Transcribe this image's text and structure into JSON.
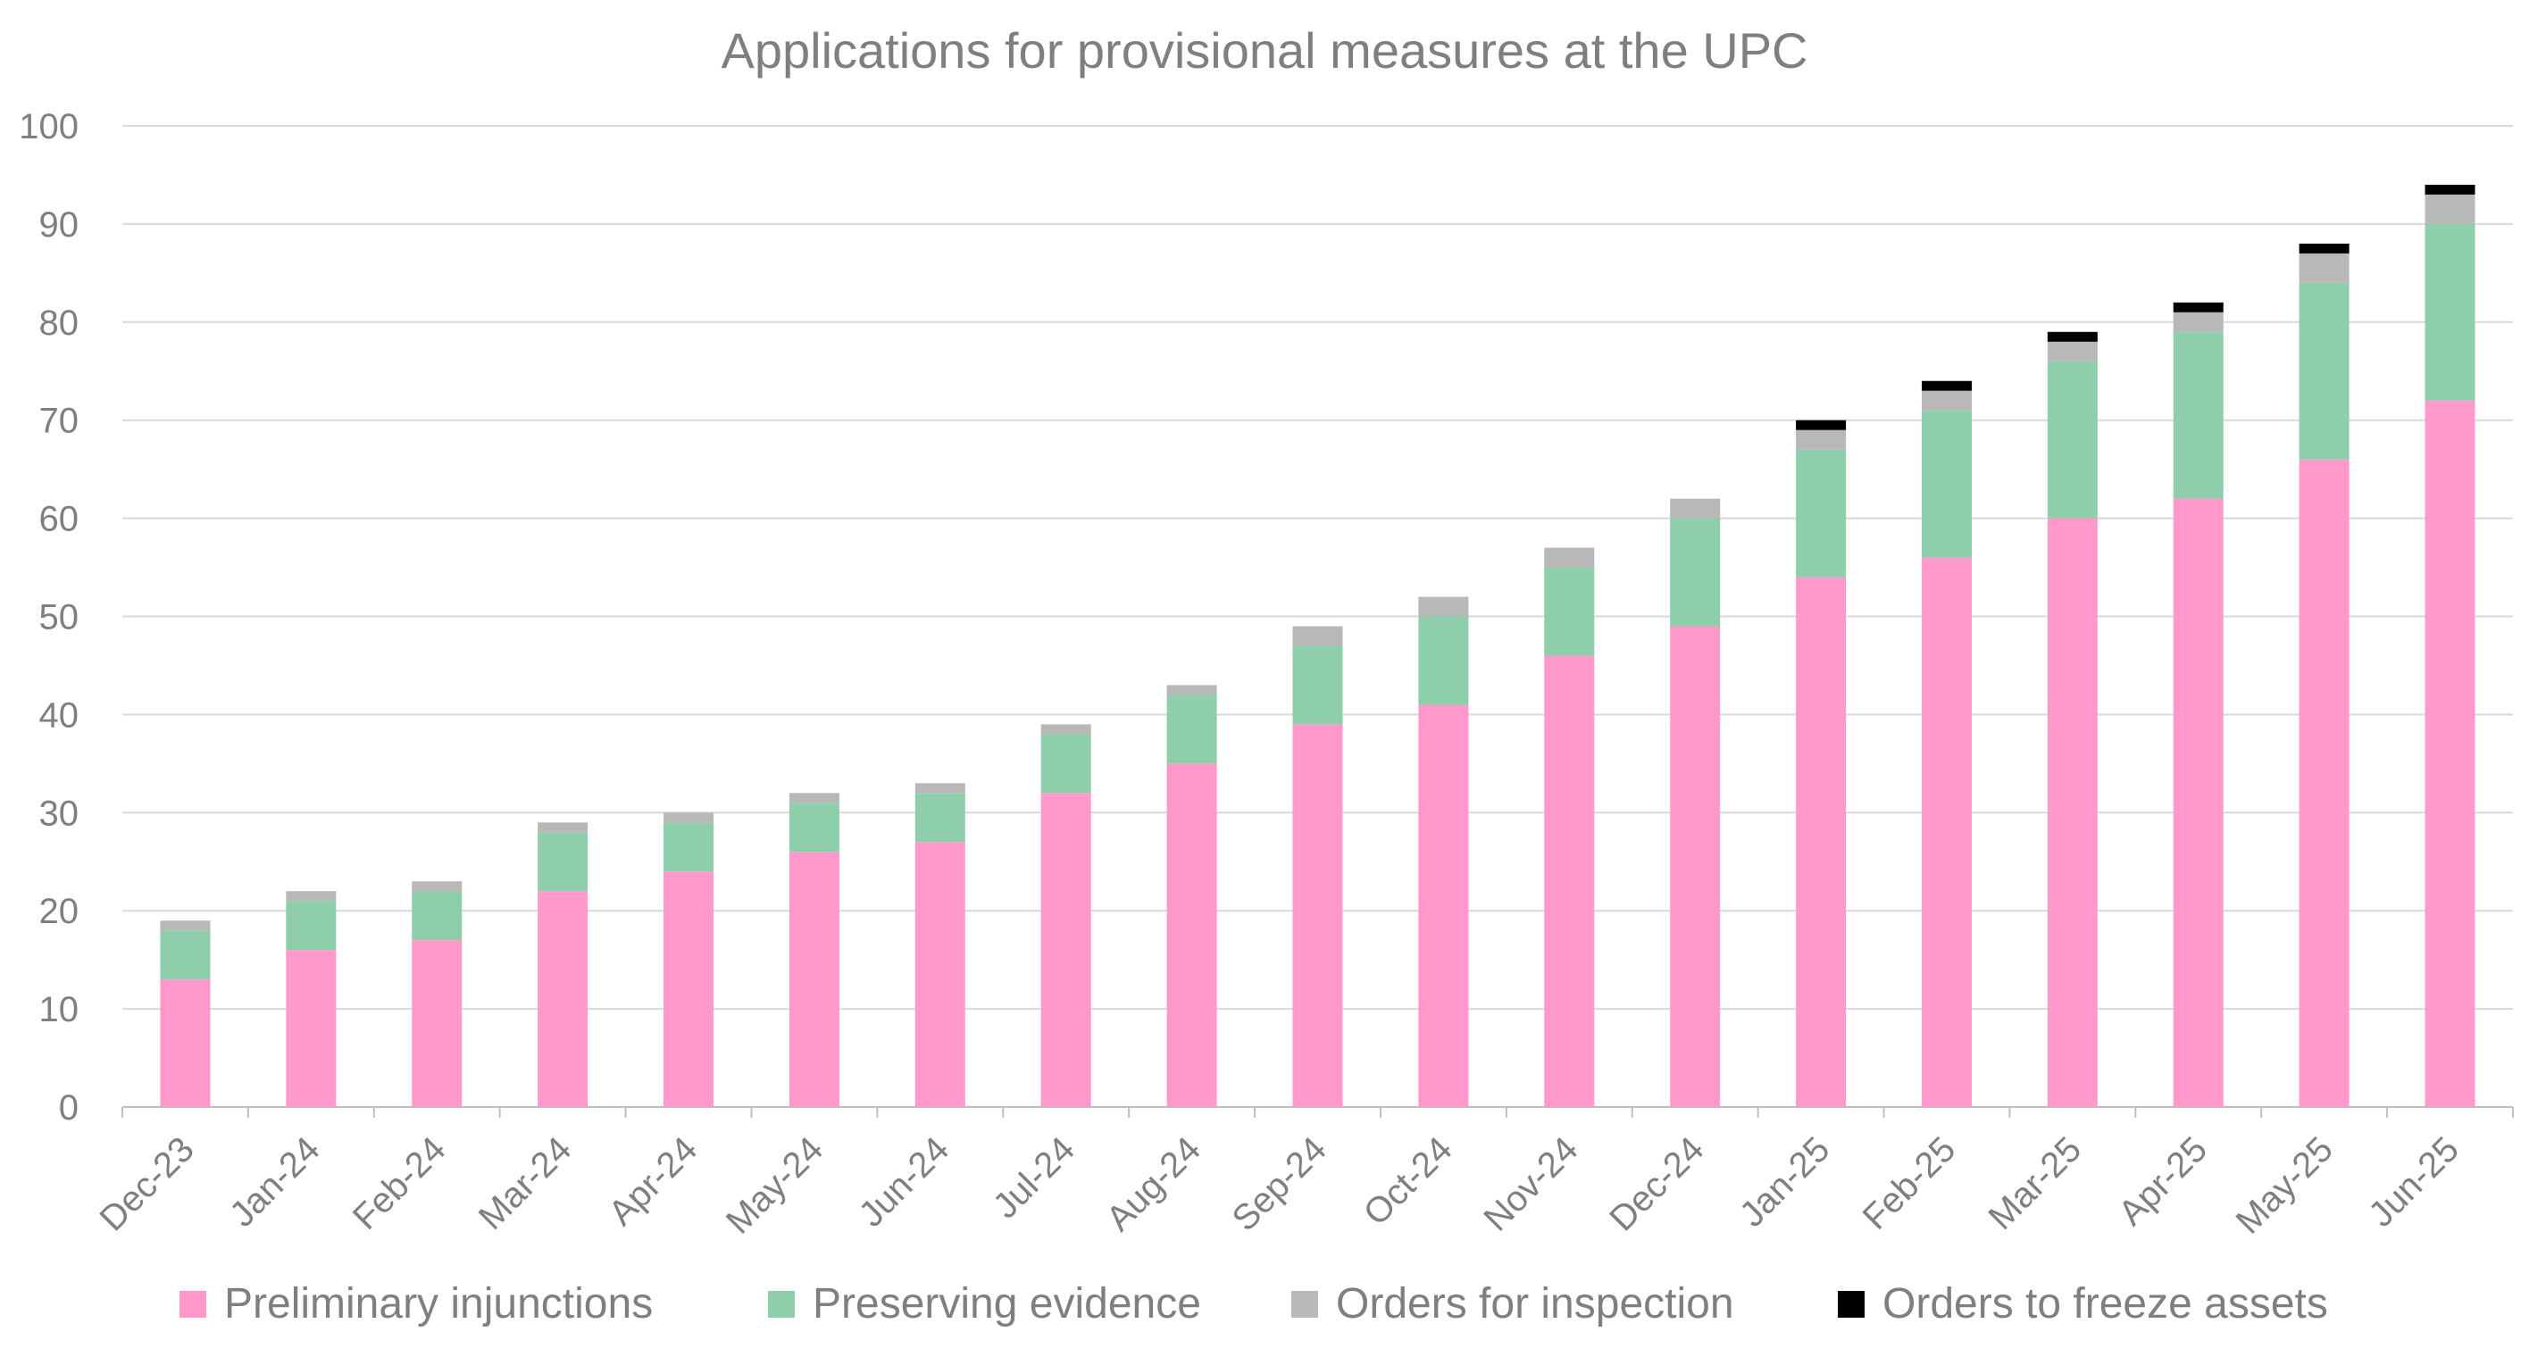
{
  "chart_data": {
    "type": "bar",
    "stacked": true,
    "title": "Applications for provisional measures at the UPC",
    "xlabel": "",
    "ylabel": "",
    "ylim": [
      0,
      100
    ],
    "yticks": [
      0,
      10,
      20,
      30,
      40,
      50,
      60,
      70,
      80,
      90,
      100
    ],
    "grid": true,
    "legend_position": "bottom",
    "categories": [
      "Dec-23",
      "Jan-24",
      "Feb-24",
      "Mar-24",
      "Apr-24",
      "May-24",
      "Jun-24",
      "Jul-24",
      "Aug-24",
      "Sep-24",
      "Oct-24",
      "Nov-24",
      "Dec-24",
      "Jan-25",
      "Feb-25",
      "Mar-25",
      "Apr-25",
      "May-25",
      "Jun-25"
    ],
    "series": [
      {
        "name": "Preliminary injunctions",
        "color": "#ff99cc",
        "values": [
          13,
          16,
          17,
          22,
          24,
          26,
          27,
          32,
          35,
          39,
          41,
          46,
          49,
          54,
          56,
          60,
          62,
          66,
          72
        ]
      },
      {
        "name": "Preserving evidence",
        "color": "#8fceaa",
        "values": [
          5,
          5,
          5,
          6,
          5,
          5,
          5,
          6,
          7,
          8,
          9,
          9,
          11,
          13,
          15,
          16,
          17,
          18,
          18
        ]
      },
      {
        "name": "Orders for inspection",
        "color": "#b8b8b8",
        "values": [
          1,
          1,
          1,
          1,
          1,
          1,
          1,
          1,
          1,
          2,
          2,
          2,
          2,
          2,
          2,
          2,
          2,
          3,
          3
        ]
      },
      {
        "name": "Orders to freeze assets",
        "color": "#000000",
        "values": [
          0,
          0,
          0,
          0,
          0,
          0,
          0,
          0,
          0,
          0,
          0,
          0,
          0,
          1,
          1,
          1,
          1,
          1,
          1
        ]
      }
    ]
  }
}
